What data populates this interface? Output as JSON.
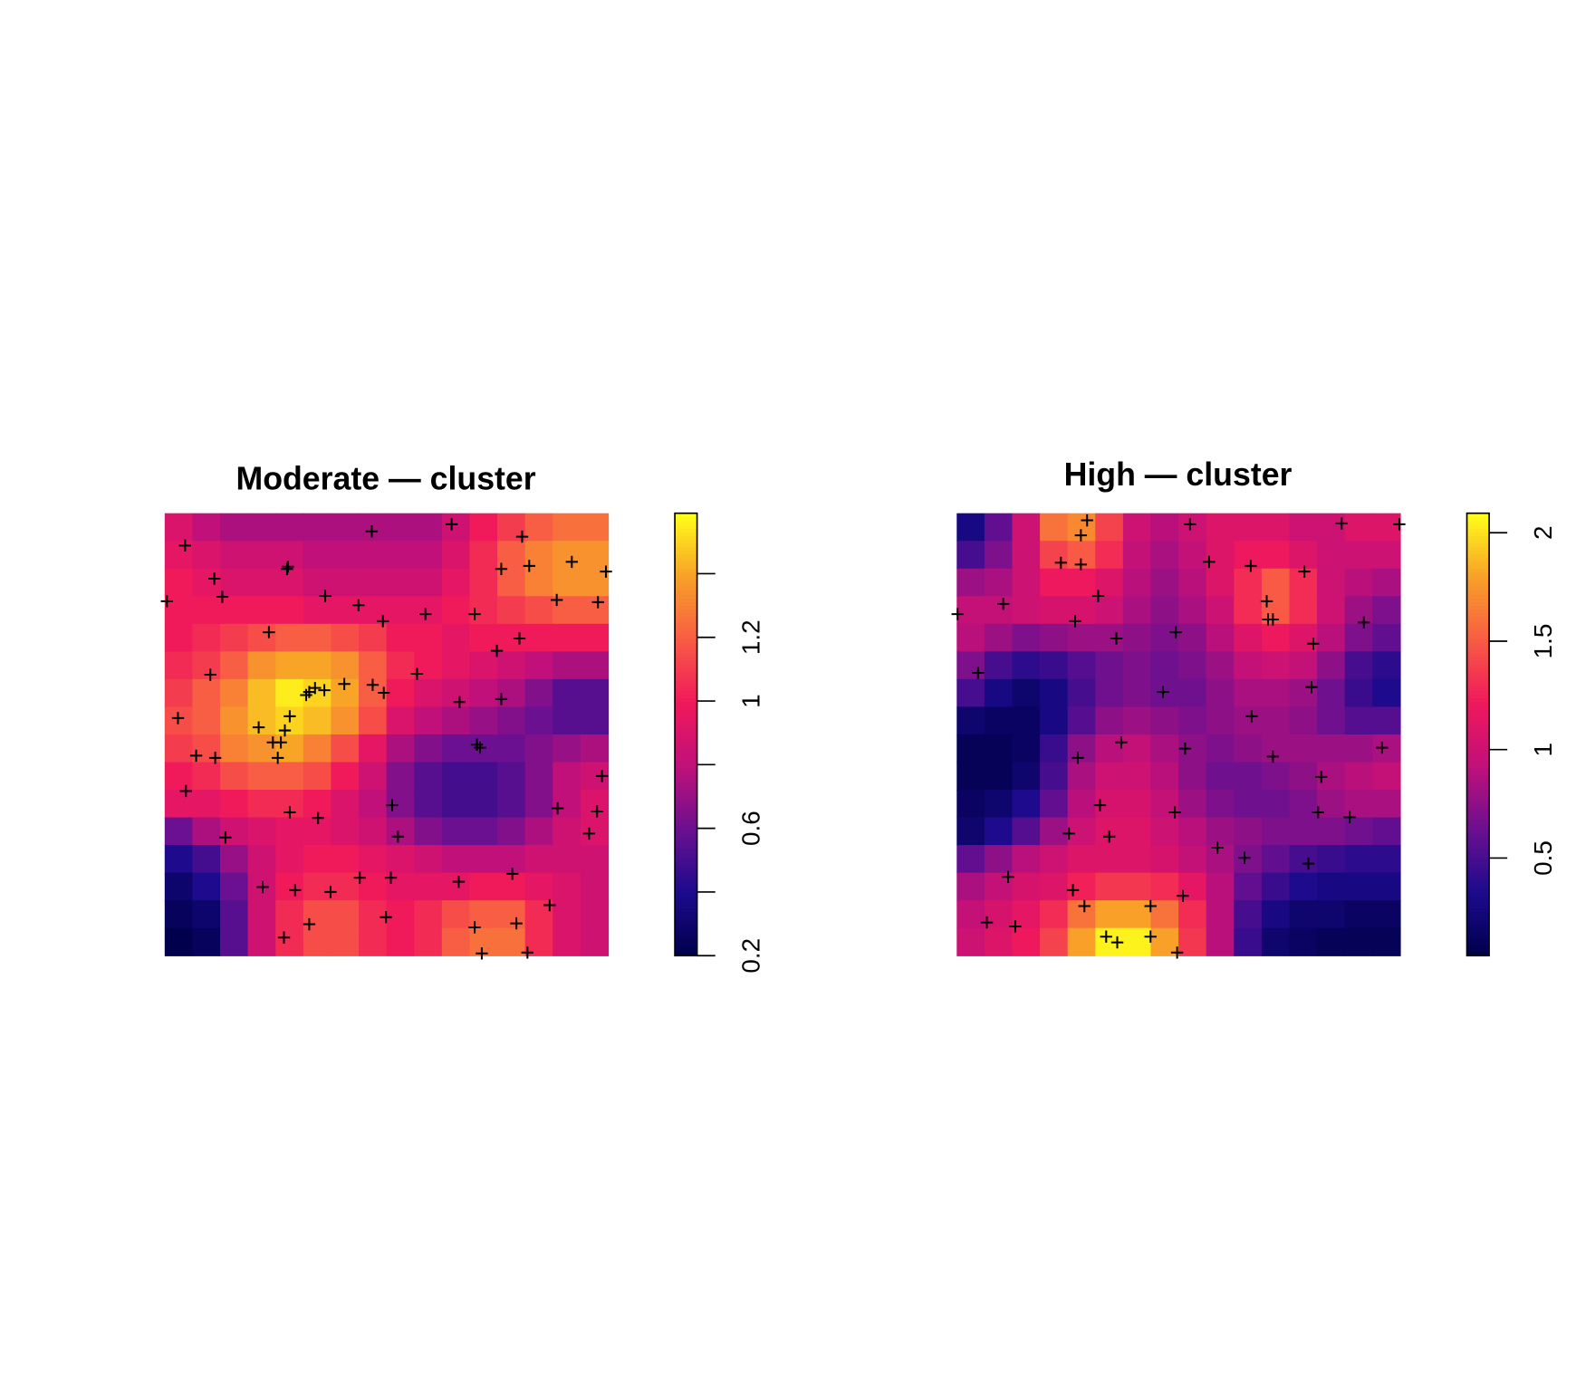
{
  "chart_data": [
    {
      "type": "heatmap",
      "title": "Moderate — cluster",
      "xlim": [
        0,
        1
      ],
      "ylim": [
        0,
        1
      ],
      "zlim": [
        0.2,
        1.59
      ],
      "zticks": [
        0.2,
        0.6,
        1,
        1.2
      ],
      "zminor_ticks": [
        0.4,
        0.8,
        1.4
      ],
      "colormap": [
        "#00004c",
        "#1c0a8c",
        "#6a1090",
        "#c0107a",
        "#f0185c",
        "#f85c44",
        "#f8a028",
        "#ffff1a"
      ],
      "point_color": "#000000",
      "z": [
        [
          0.9,
          0.8,
          0.75,
          0.75,
          0.75,
          0.75,
          0.75,
          0.75,
          0.75,
          0.75,
          0.85,
          1.0,
          1.1,
          1.2,
          1.25,
          1.25
        ],
        [
          0.95,
          0.9,
          0.85,
          0.85,
          0.85,
          0.8,
          0.8,
          0.8,
          0.8,
          0.8,
          0.9,
          1.05,
          1.2,
          1.3,
          1.35,
          1.35
        ],
        [
          1.0,
          0.95,
          0.9,
          0.9,
          0.9,
          0.85,
          0.85,
          0.85,
          0.85,
          0.85,
          0.95,
          1.05,
          1.2,
          1.3,
          1.35,
          1.35
        ],
        [
          1.0,
          1.0,
          1.0,
          1.0,
          1.0,
          0.95,
          0.95,
          0.95,
          0.95,
          0.95,
          1.0,
          1.05,
          1.1,
          1.15,
          1.2,
          1.2
        ],
        [
          1.0,
          1.05,
          1.1,
          1.15,
          1.2,
          1.2,
          1.15,
          1.1,
          1.0,
          1.0,
          0.95,
          1.0,
          1.0,
          1.0,
          1.0,
          1.0
        ],
        [
          1.05,
          1.1,
          1.2,
          1.35,
          1.4,
          1.4,
          1.35,
          1.2,
          1.05,
          1.0,
          0.95,
          0.9,
          0.85,
          0.8,
          0.75,
          0.75
        ],
        [
          1.1,
          1.2,
          1.3,
          1.45,
          1.55,
          1.5,
          1.4,
          1.2,
          1.0,
          0.9,
          0.85,
          0.8,
          0.75,
          0.65,
          0.55,
          0.55
        ],
        [
          1.15,
          1.2,
          1.35,
          1.45,
          1.5,
          1.45,
          1.35,
          1.15,
          0.9,
          0.8,
          0.75,
          0.7,
          0.65,
          0.6,
          0.55,
          0.55
        ],
        [
          1.1,
          1.15,
          1.3,
          1.35,
          1.4,
          1.3,
          1.15,
          0.95,
          0.75,
          0.65,
          0.6,
          0.6,
          0.6,
          0.65,
          0.7,
          0.75
        ],
        [
          1.0,
          1.05,
          1.15,
          1.2,
          1.2,
          1.15,
          1.0,
          0.85,
          0.65,
          0.55,
          0.5,
          0.5,
          0.55,
          0.65,
          0.8,
          0.85
        ],
        [
          0.95,
          0.95,
          1.0,
          1.05,
          1.05,
          1.0,
          0.9,
          0.8,
          0.65,
          0.55,
          0.5,
          0.5,
          0.55,
          0.65,
          0.8,
          0.9
        ],
        [
          0.6,
          0.75,
          0.85,
          0.9,
          0.95,
          0.95,
          0.9,
          0.85,
          0.75,
          0.65,
          0.6,
          0.6,
          0.65,
          0.75,
          0.85,
          0.9
        ],
        [
          0.4,
          0.5,
          0.7,
          0.85,
          0.95,
          1.0,
          1.0,
          0.95,
          0.9,
          0.85,
          0.8,
          0.8,
          0.8,
          0.85,
          0.85,
          0.85
        ],
        [
          0.3,
          0.4,
          0.6,
          0.85,
          1.0,
          1.05,
          1.05,
          1.0,
          0.95,
          0.95,
          0.95,
          1.0,
          1.0,
          0.95,
          0.9,
          0.85
        ],
        [
          0.25,
          0.3,
          0.55,
          0.85,
          1.05,
          1.15,
          1.15,
          1.05,
          1.0,
          1.05,
          1.15,
          1.2,
          1.2,
          1.05,
          0.9,
          0.85
        ],
        [
          0.2,
          0.25,
          0.55,
          0.85,
          1.05,
          1.15,
          1.15,
          1.05,
          1.0,
          1.05,
          1.2,
          1.25,
          1.25,
          1.05,
          0.9,
          0.85
        ]
      ],
      "points": {
        "x": [
          0.467,
          0.647,
          0.046,
          0.806,
          0.278,
          0.276,
          0.918,
          0.995,
          0.112,
          0.759,
          0.822,
          0.005,
          0.13,
          0.362,
          0.437,
          0.492,
          0.588,
          0.699,
          0.884,
          0.977,
          0.235,
          0.8,
          0.749,
          0.103,
          0.569,
          0.319,
          0.326,
          0.339,
          0.36,
          0.405,
          0.469,
          0.494,
          0.665,
          0.759,
          0.03,
          0.282,
          0.212,
          0.271,
          0.244,
          0.262,
          0.071,
          0.114,
          0.255,
          0.704,
          0.711,
          0.986,
          0.048,
          0.513,
          0.282,
          0.346,
          0.886,
          0.975,
          0.137,
          0.526,
          0.957,
          0.784,
          0.44,
          0.51,
          0.221,
          0.294,
          0.374,
          0.663,
          0.868,
          0.499,
          0.326,
          0.699,
          0.793,
          0.269,
          0.715,
          0.818
        ],
        "y": [
          0.959,
          0.975,
          0.927,
          0.947,
          0.879,
          0.874,
          0.89,
          0.868,
          0.852,
          0.874,
          0.881,
          0.801,
          0.811,
          0.813,
          0.792,
          0.756,
          0.772,
          0.772,
          0.804,
          0.799,
          0.731,
          0.717,
          0.689,
          0.635,
          0.637,
          0.589,
          0.596,
          0.605,
          0.6,
          0.614,
          0.612,
          0.594,
          0.573,
          0.58,
          0.537,
          0.541,
          0.516,
          0.509,
          0.482,
          0.482,
          0.452,
          0.447,
          0.447,
          0.477,
          0.47,
          0.406,
          0.372,
          0.34,
          0.324,
          0.311,
          0.333,
          0.326,
          0.267,
          0.269,
          0.276,
          0.185,
          0.176,
          0.176,
          0.155,
          0.148,
          0.144,
          0.167,
          0.114,
          0.087,
          0.071,
          0.064,
          0.073,
          0.041,
          0.005,
          0.007
        ]
      }
    },
    {
      "type": "heatmap",
      "title": "High — cluster",
      "xlim": [
        0,
        1
      ],
      "ylim": [
        0,
        1
      ],
      "zlim": [
        0.05,
        2.09
      ],
      "zticks": [
        0.5,
        1,
        1.5,
        2
      ],
      "zminor_ticks": [],
      "colormap": [
        "#00004c",
        "#1c0a8c",
        "#6a1090",
        "#c0107a",
        "#f0185c",
        "#f85c44",
        "#f8a028",
        "#ffff1a"
      ],
      "point_color": "#000000",
      "z": [
        [
          0.3,
          0.6,
          1.0,
          1.6,
          1.7,
          1.4,
          1.0,
          0.9,
          1.0,
          1.1,
          1.1,
          1.1,
          1.0,
          1.0,
          1.1,
          1.1
        ],
        [
          0.5,
          0.7,
          1.0,
          1.4,
          1.5,
          1.3,
          0.95,
          0.85,
          0.95,
          1.1,
          1.2,
          1.2,
          1.1,
          1.0,
          1.0,
          1.0
        ],
        [
          0.8,
          0.85,
          1.0,
          1.2,
          1.2,
          1.1,
          0.9,
          0.8,
          0.9,
          1.1,
          1.3,
          1.5,
          1.3,
          1.0,
          0.9,
          0.85
        ],
        [
          0.95,
          0.95,
          1.0,
          1.05,
          1.05,
          1.0,
          0.85,
          0.75,
          0.85,
          1.0,
          1.3,
          1.5,
          1.3,
          1.0,
          0.8,
          0.7
        ],
        [
          0.9,
          0.8,
          0.7,
          0.75,
          0.8,
          0.8,
          0.75,
          0.7,
          0.75,
          0.9,
          1.1,
          1.2,
          1.1,
          0.9,
          0.7,
          0.6
        ],
        [
          0.7,
          0.5,
          0.4,
          0.45,
          0.55,
          0.65,
          0.7,
          0.65,
          0.7,
          0.8,
          0.95,
          1.0,
          0.95,
          0.75,
          0.5,
          0.4
        ],
        [
          0.5,
          0.3,
          0.2,
          0.3,
          0.5,
          0.65,
          0.7,
          0.65,
          0.65,
          0.75,
          0.85,
          0.85,
          0.8,
          0.65,
          0.45,
          0.35
        ],
        [
          0.2,
          0.15,
          0.15,
          0.3,
          0.55,
          0.75,
          0.8,
          0.75,
          0.7,
          0.75,
          0.8,
          0.8,
          0.75,
          0.65,
          0.55,
          0.55
        ],
        [
          0.1,
          0.1,
          0.15,
          0.45,
          0.75,
          0.9,
          0.95,
          0.85,
          0.75,
          0.7,
          0.75,
          0.8,
          0.8,
          0.8,
          0.8,
          0.85
        ],
        [
          0.1,
          0.1,
          0.2,
          0.5,
          0.85,
          1.0,
          1.0,
          0.9,
          0.75,
          0.65,
          0.65,
          0.7,
          0.75,
          0.85,
          0.9,
          0.95
        ],
        [
          0.15,
          0.2,
          0.35,
          0.6,
          0.9,
          1.05,
          1.05,
          0.95,
          0.8,
          0.7,
          0.65,
          0.65,
          0.7,
          0.8,
          0.85,
          0.85
        ],
        [
          0.2,
          0.35,
          0.55,
          0.8,
          1.0,
          1.1,
          1.1,
          1.0,
          0.9,
          0.8,
          0.75,
          0.7,
          0.7,
          0.7,
          0.65,
          0.6
        ],
        [
          0.6,
          0.75,
          0.9,
          1.0,
          1.1,
          1.1,
          1.1,
          1.05,
          0.95,
          0.85,
          0.7,
          0.6,
          0.5,
          0.45,
          0.4,
          0.4
        ],
        [
          0.85,
          0.95,
          1.05,
          1.1,
          1.25,
          1.35,
          1.35,
          1.3,
          1.15,
          0.9,
          0.6,
          0.45,
          0.35,
          0.3,
          0.3,
          0.3
        ],
        [
          0.95,
          1.05,
          1.15,
          1.3,
          1.6,
          1.8,
          1.8,
          1.6,
          1.3,
          0.9,
          0.5,
          0.3,
          0.2,
          0.2,
          0.15,
          0.15
        ],
        [
          1.0,
          1.1,
          1.2,
          1.4,
          1.8,
          2.05,
          2.05,
          1.8,
          1.35,
          0.9,
          0.45,
          0.2,
          0.15,
          0.1,
          0.1,
          0.1
        ]
      ],
      "points": {
        "x": [
          0.294,
          0.28,
          0.526,
          0.868,
          0.998,
          0.235,
          0.28,
          0.569,
          0.663,
          0.784,
          0.319,
          0.699,
          0.002,
          0.105,
          0.267,
          0.702,
          0.713,
          0.918,
          0.36,
          0.494,
          0.804,
          0.048,
          0.465,
          0.8,
          0.665,
          0.371,
          0.273,
          0.515,
          0.713,
          0.959,
          0.822,
          0.323,
          0.492,
          0.815,
          0.886,
          0.253,
          0.344,
          0.588,
          0.649,
          0.793,
          0.116,
          0.262,
          0.51,
          0.288,
          0.437,
          0.068,
          0.132,
          0.337,
          0.362,
          0.437,
          0.497
        ],
        "y": [
          0.984,
          0.95,
          0.975,
          0.977,
          0.975,
          0.888,
          0.884,
          0.89,
          0.881,
          0.868,
          0.813,
          0.801,
          0.772,
          0.795,
          0.756,
          0.76,
          0.76,
          0.753,
          0.717,
          0.731,
          0.705,
          0.639,
          0.596,
          0.607,
          0.541,
          0.482,
          0.447,
          0.468,
          0.45,
          0.47,
          0.404,
          0.34,
          0.324,
          0.324,
          0.313,
          0.276,
          0.269,
          0.244,
          0.221,
          0.208,
          0.178,
          0.148,
          0.135,
          0.112,
          0.112,
          0.075,
          0.066,
          0.043,
          0.03,
          0.043,
          0.007
        ]
      }
    }
  ]
}
